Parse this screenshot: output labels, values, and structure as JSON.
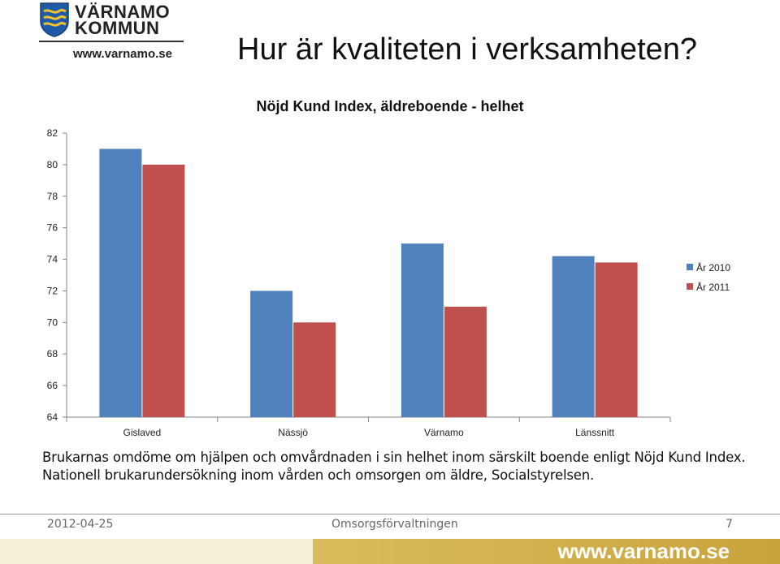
{
  "header": {
    "logo_line1": "VÄRNAMO",
    "logo_line2": "KOMMUN",
    "logo_url": "www.varnamo.se",
    "slide_title": "Hur är kvaliteten i verksamheten?"
  },
  "chart_data": {
    "type": "bar",
    "title": "Nöjd Kund Index, äldreboende - helhet",
    "categories": [
      "Gislaved",
      "Nässjö",
      "Värnamo",
      "Länssnitt"
    ],
    "series": [
      {
        "name": "År 2010",
        "values": [
          81,
          72,
          75,
          74.2
        ],
        "color": "#4f81bd"
      },
      {
        "name": "År 2011",
        "values": [
          80,
          70,
          71,
          73.8
        ],
        "color": "#c0504d"
      }
    ],
    "ylim": [
      64,
      82
    ],
    "yticks": [
      64,
      66,
      68,
      70,
      72,
      74,
      76,
      78,
      80,
      82
    ],
    "grid": false,
    "legend": "right"
  },
  "caption": {
    "line1": "Brukarnas omdöme om hjälpen och omvårdnaden i sin helhet inom särskilt boende enligt Nöjd Kund Index.",
    "line2": "Nationell brukarundersökning inom vården och omsorgen om äldre, Socialstyrelsen."
  },
  "footer": {
    "date": "2012-04-25",
    "org": "Omsorgsförvaltningen",
    "page": "7",
    "url": "www.varnamo.se"
  }
}
